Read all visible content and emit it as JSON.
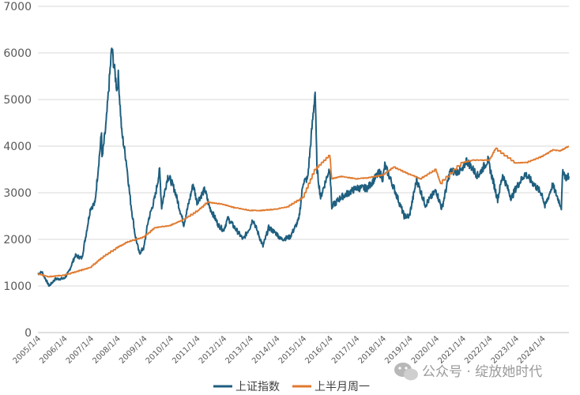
{
  "chart_data": {
    "type": "line",
    "title": "",
    "xlabel": "",
    "ylabel": "",
    "ylim": [
      0,
      7000
    ],
    "yticks": [
      0,
      1000,
      2000,
      3000,
      4000,
      5000,
      6000,
      7000
    ],
    "grid": true,
    "legend_position": "bottom",
    "x_tick_labels": [
      "2005/1/4",
      "2006/1/4",
      "2007/1/4",
      "2008/1/4",
      "2009/1/4",
      "2010/1/4",
      "2011/1/4",
      "2012/1/4",
      "2013/1/4",
      "2014/1/4",
      "2015/1/4",
      "2016/1/4",
      "2017/1/4",
      "2018/1/4",
      "2019/1/4",
      "2020/1/4",
      "2021/1/4",
      "2022/1/4",
      "2023/1/4",
      "2024/1/4"
    ],
    "series": [
      {
        "name": "上证指数",
        "color": "#1f5f7f",
        "points": [
          [
            "2005-01-04",
            1260
          ],
          [
            "2005-03-01",
            1300
          ],
          [
            "2005-06-06",
            1000
          ],
          [
            "2005-09-01",
            1150
          ],
          [
            "2005-12-30",
            1160
          ],
          [
            "2006-03-01",
            1290
          ],
          [
            "2006-06-01",
            1650
          ],
          [
            "2006-09-01",
            1600
          ],
          [
            "2006-12-29",
            2680
          ],
          [
            "2007-02-27",
            2770
          ],
          [
            "2007-05-29",
            4300
          ],
          [
            "2007-06-04",
            3700
          ],
          [
            "2007-08-01",
            4500
          ],
          [
            "2007-10-16",
            6100
          ],
          [
            "2007-12-28",
            5200
          ],
          [
            "2008-01-14",
            5500
          ],
          [
            "2008-03-01",
            4300
          ],
          [
            "2008-05-01",
            3700
          ],
          [
            "2008-07-01",
            2800
          ],
          [
            "2008-09-01",
            2100
          ],
          [
            "2008-10-28",
            1700
          ],
          [
            "2008-12-31",
            1820
          ],
          [
            "2009-03-01",
            2400
          ],
          [
            "2009-06-01",
            2900
          ],
          [
            "2009-08-04",
            3480
          ],
          [
            "2009-09-01",
            2700
          ],
          [
            "2009-11-24",
            3350
          ],
          [
            "2009-12-31",
            3280
          ],
          [
            "2010-03-01",
            3050
          ],
          [
            "2010-07-02",
            2320
          ],
          [
            "2010-11-08",
            3180
          ],
          [
            "2010-12-31",
            2800
          ],
          [
            "2011-04-18",
            3070
          ],
          [
            "2011-06-20",
            2700
          ],
          [
            "2011-10-24",
            2300
          ],
          [
            "2011-12-30",
            2200
          ],
          [
            "2012-03-01",
            2450
          ],
          [
            "2012-09-26",
            2000
          ],
          [
            "2012-12-31",
            2270
          ],
          [
            "2013-02-06",
            2440
          ],
          [
            "2013-06-25",
            1850
          ],
          [
            "2013-09-12",
            2250
          ],
          [
            "2013-12-31",
            2120
          ],
          [
            "2014-03-01",
            2000
          ],
          [
            "2014-07-01",
            2050
          ],
          [
            "2014-10-31",
            2420
          ],
          [
            "2014-12-31",
            3240
          ],
          [
            "2015-03-01",
            3300
          ],
          [
            "2015-06-12",
            5180
          ],
          [
            "2015-07-08",
            3500
          ],
          [
            "2015-08-26",
            2900
          ],
          [
            "2015-12-31",
            3540
          ],
          [
            "2016-01-28",
            2700
          ],
          [
            "2016-06-01",
            2900
          ],
          [
            "2016-12-30",
            3100
          ],
          [
            "2017-06-01",
            3100
          ],
          [
            "2017-11-14",
            3440
          ],
          [
            "2017-12-29",
            3300
          ],
          [
            "2018-01-26",
            3590
          ],
          [
            "2018-06-01",
            3100
          ],
          [
            "2018-10-19",
            2500
          ],
          [
            "2018-12-28",
            2490
          ],
          [
            "2019-04-08",
            3280
          ],
          [
            "2019-08-06",
            2740
          ],
          [
            "2019-12-31",
            3050
          ],
          [
            "2020-03-19",
            2660
          ],
          [
            "2020-07-09",
            3450
          ],
          [
            "2020-12-31",
            3470
          ],
          [
            "2021-02-18",
            3700
          ],
          [
            "2021-07-28",
            3360
          ],
          [
            "2021-12-13",
            3700
          ],
          [
            "2022-04-26",
            2860
          ],
          [
            "2022-07-04",
            3390
          ],
          [
            "2022-10-31",
            2880
          ],
          [
            "2022-12-30",
            3090
          ],
          [
            "2023-05-09",
            3410
          ],
          [
            "2023-12-29",
            2970
          ],
          [
            "2024-02-05",
            2700
          ],
          [
            "2024-05-20",
            3170
          ],
          [
            "2024-09-18",
            2690
          ],
          [
            "2024-10-08",
            3490
          ],
          [
            "2024-11-15",
            3330
          ],
          [
            "2024-12-31",
            3350
          ]
        ]
      },
      {
        "name": "上半月周一",
        "color": "#e07a2f",
        "points": [
          [
            "2005-01-04",
            1260
          ],
          [
            "2005-06-01",
            1200
          ],
          [
            "2005-12-30",
            1230
          ],
          [
            "2006-06-01",
            1300
          ],
          [
            "2006-12-29",
            1400
          ],
          [
            "2007-06-01",
            1600
          ],
          [
            "2007-12-28",
            1820
          ],
          [
            "2008-06-01",
            1950
          ],
          [
            "2008-12-31",
            2050
          ],
          [
            "2009-06-01",
            2250
          ],
          [
            "2009-12-31",
            2300
          ],
          [
            "2010-06-01",
            2400
          ],
          [
            "2010-12-31",
            2600
          ],
          [
            "2011-06-01",
            2800
          ],
          [
            "2011-12-30",
            2750
          ],
          [
            "2012-06-01",
            2680
          ],
          [
            "2012-12-31",
            2620
          ],
          [
            "2013-06-01",
            2620
          ],
          [
            "2013-12-31",
            2650
          ],
          [
            "2014-06-01",
            2700
          ],
          [
            "2014-12-31",
            2900
          ],
          [
            "2015-06-12",
            3500
          ],
          [
            "2015-12-31",
            3800
          ],
          [
            "2016-01-28",
            3300
          ],
          [
            "2016-06-01",
            3350
          ],
          [
            "2016-12-30",
            3300
          ],
          [
            "2017-06-01",
            3320
          ],
          [
            "2017-12-29",
            3380
          ],
          [
            "2018-06-01",
            3550
          ],
          [
            "2018-12-28",
            3400
          ],
          [
            "2019-06-01",
            3300
          ],
          [
            "2019-12-31",
            3500
          ],
          [
            "2020-03-01",
            3200
          ],
          [
            "2020-12-31",
            3650
          ],
          [
            "2021-06-01",
            3700
          ],
          [
            "2021-12-31",
            3700
          ],
          [
            "2022-04-01",
            3950
          ],
          [
            "2022-12-30",
            3640
          ],
          [
            "2023-06-01",
            3650
          ],
          [
            "2023-12-29",
            3780
          ],
          [
            "2024-06-01",
            3920
          ],
          [
            "2024-09-01",
            3900
          ],
          [
            "2024-12-31",
            4000
          ]
        ]
      }
    ]
  },
  "watermark": {
    "icon": "wechat-icon",
    "text": "公众号 · 绽放她时代"
  }
}
